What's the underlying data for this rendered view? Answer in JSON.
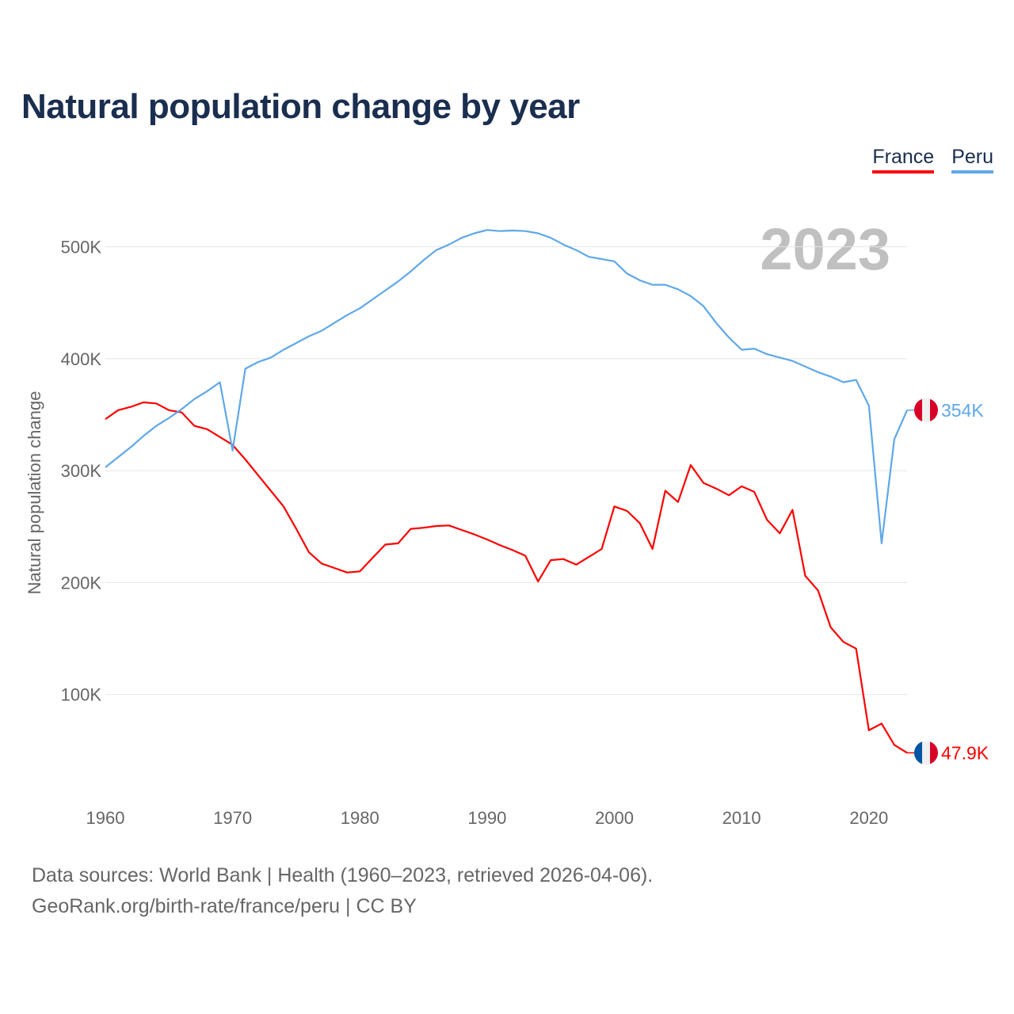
{
  "chart_data": {
    "type": "line",
    "title": "Natural population change by year",
    "ylabel": "Natural population change",
    "xlabel": "",
    "xlim": [
      1960,
      2023
    ],
    "ylim": [
      0,
      550000
    ],
    "grid": true,
    "legend_placement": "top-right",
    "year_watermark": "2023",
    "x_ticks": [
      "1960",
      "1970",
      "1980",
      "1990",
      "2000",
      "2010",
      "2020"
    ],
    "y_ticks": [
      {
        "value": 100000,
        "label": "100K"
      },
      {
        "value": 200000,
        "label": "200K"
      },
      {
        "value": 300000,
        "label": "300K"
      },
      {
        "value": 400000,
        "label": "400K"
      },
      {
        "value": 500000,
        "label": "500K"
      }
    ],
    "x": [
      1960,
      1961,
      1962,
      1963,
      1964,
      1965,
      1966,
      1967,
      1968,
      1969,
      1970,
      1971,
      1972,
      1973,
      1974,
      1975,
      1976,
      1977,
      1978,
      1979,
      1980,
      1981,
      1982,
      1983,
      1984,
      1985,
      1986,
      1987,
      1988,
      1989,
      1990,
      1991,
      1992,
      1993,
      1994,
      1995,
      1996,
      1997,
      1998,
      1999,
      2000,
      2001,
      2002,
      2003,
      2004,
      2005,
      2006,
      2007,
      2008,
      2009,
      2010,
      2011,
      2012,
      2013,
      2014,
      2015,
      2016,
      2017,
      2018,
      2019,
      2020,
      2021,
      2022,
      2023
    ],
    "series": [
      {
        "name": "France",
        "color": "#ff0000",
        "end_label": "47.9K",
        "flag": [
          "#0055a4",
          "#f0f0f0",
          "#d80027"
        ],
        "values": [
          346,
          354,
          357,
          361,
          360,
          354,
          352,
          340,
          337,
          330,
          323,
          310,
          296,
          282,
          268,
          248,
          227,
          217,
          213,
          209,
          210,
          222,
          234,
          235,
          248,
          249,
          250.5,
          251,
          247,
          243,
          238.5,
          233.5,
          229,
          224,
          201,
          220,
          221,
          216,
          223,
          230,
          268,
          264,
          253,
          230,
          282,
          272,
          305,
          289,
          284,
          278,
          286,
          281,
          256,
          244,
          265,
          206,
          193,
          160,
          147,
          141,
          68,
          74,
          55,
          47.9
        ]
      },
      {
        "name": "Peru",
        "color": "#5fa8e8",
        "end_label": "354K",
        "flag": [
          "#d80027",
          "#f0f0f0",
          "#d80027"
        ],
        "values": [
          303,
          312,
          321,
          331,
          340,
          347,
          355,
          364,
          371,
          379,
          318,
          391,
          397,
          401,
          408,
          414,
          420,
          425,
          432,
          439,
          445,
          453,
          461,
          469,
          478,
          488,
          497,
          502,
          508,
          512,
          515,
          514,
          514.5,
          514,
          512,
          508,
          502,
          497,
          491,
          489,
          487,
          476,
          470,
          466,
          466,
          462,
          456,
          447,
          432,
          419,
          408,
          409,
          404,
          401,
          398,
          393,
          388,
          384,
          379,
          381,
          358,
          235,
          328,
          354
        ]
      }
    ],
    "value_unit": "thousands"
  },
  "footer": {
    "line1": "Data sources: World Bank | Health (1960–2023, retrieved 2026-04-06).",
    "line2": "GeoRank.org/birth-rate/france/peru | CC BY"
  }
}
